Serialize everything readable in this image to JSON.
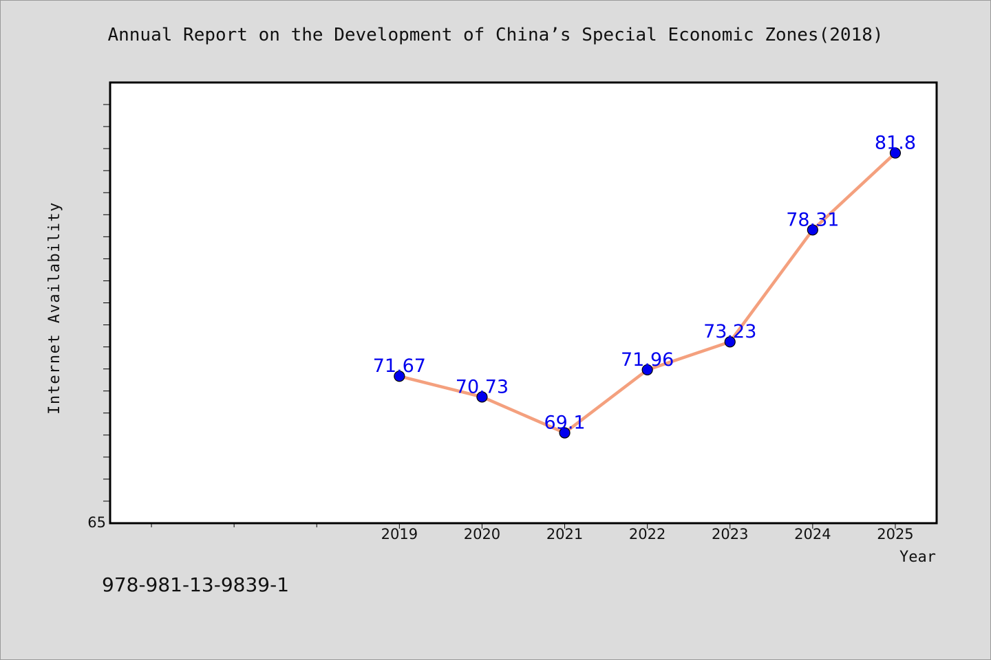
{
  "title": "Annual Report on the Development of China’s Special Economic Zones(2018)",
  "footer_code": "978-981-13-9839-1",
  "chart_data": {
    "type": "line",
    "title": "Annual Report on the Development of China’s Special Economic Zones(2018)",
    "xlabel": "Year",
    "ylabel": "Internet Availability",
    "categories": [
      "2019",
      "2020",
      "2021",
      "2022",
      "2023",
      "2024",
      "2025"
    ],
    "x_tick_positions": [
      2019,
      2020,
      2021,
      2022,
      2023,
      2024,
      2025
    ],
    "xlim": [
      2015.5,
      2025.5
    ],
    "ylim": [
      65,
      85
    ],
    "y_tick_labels": [
      "65"
    ],
    "series": [
      {
        "values": [
          71.67,
          70.73,
          69.1,
          71.96,
          73.23,
          78.31,
          81.8
        ],
        "labels": [
          "71.67",
          "70.73",
          "69.1",
          "71.96",
          "73.23",
          "78.31",
          "81.8"
        ],
        "line_color": "#f4a07e",
        "marker_color": "#0000ee",
        "label_color": "#0000ee"
      }
    ],
    "grid": false,
    "legend": "none"
  }
}
